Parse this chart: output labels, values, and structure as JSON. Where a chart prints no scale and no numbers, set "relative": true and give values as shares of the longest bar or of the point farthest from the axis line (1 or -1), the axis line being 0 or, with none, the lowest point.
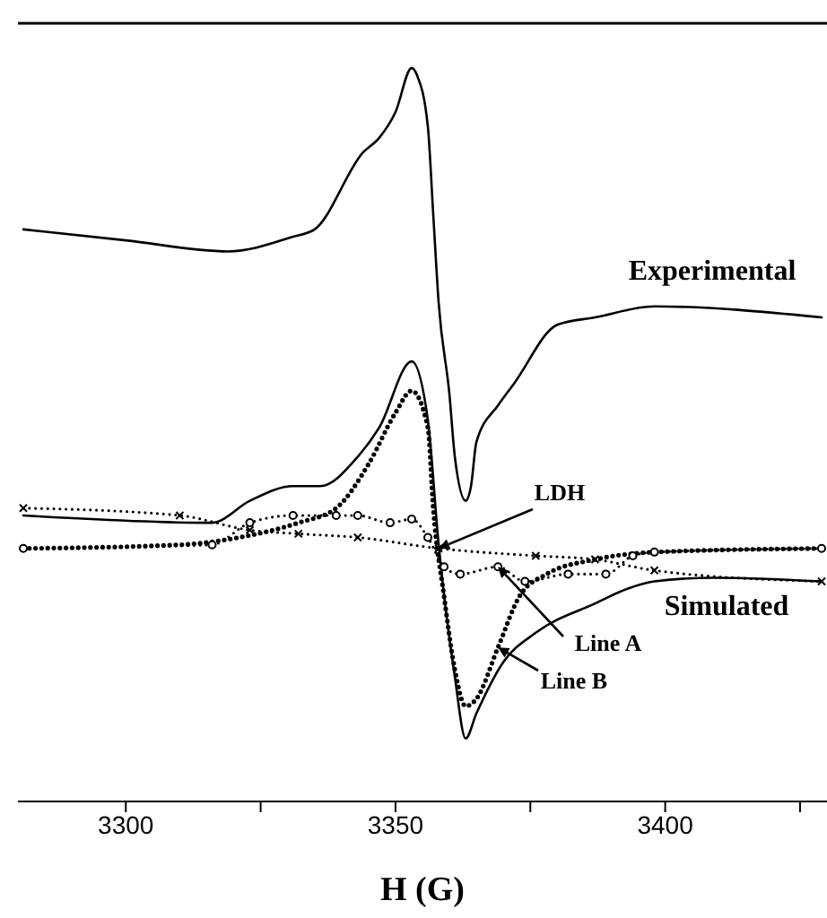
{
  "chart_data": {
    "type": "line",
    "relative": true,
    "xlabel": "H (G)",
    "xlim": [
      3280,
      3430
    ],
    "xticks": [
      3300,
      {
        "value": 3325,
        "label": null
      },
      3350,
      {
        "value": 3375,
        "label": null
      },
      3400,
      {
        "value": 3425,
        "label": null
      }
    ],
    "series": [
      {
        "name": "Experimental",
        "color": "#000000",
        "marker": "none",
        "line_style": "solid",
        "x": [
          3281,
          3300,
          3319,
          3331,
          3335,
          3344,
          3347,
          3350,
          3353,
          3354,
          3356,
          3357,
          3358,
          3360,
          3361,
          3363,
          3364,
          3365,
          3369,
          3372,
          3380,
          3387,
          3398,
          3429
        ],
        "values": [
          0.78,
          0.765,
          0.75,
          0.77,
          0.78,
          0.885,
          0.905,
          0.94,
          1.0,
          0.99,
          0.92,
          0.8,
          0.68,
          0.555,
          0.47,
          0.41,
          0.43,
          0.49,
          0.54,
          0.57,
          0.65,
          0.66,
          0.675,
          0.66
        ]
      },
      {
        "name": "Simulated",
        "color": "#000000",
        "marker": "none",
        "line_style": "solid",
        "x": [
          3281,
          3316,
          3323,
          3331,
          3336,
          3343,
          3347,
          3353,
          3356,
          3358,
          3361,
          3363,
          3365,
          3370,
          3376,
          3387,
          3393,
          3398,
          3409,
          3429
        ],
        "values": [
          0.39,
          0.38,
          0.41,
          0.43,
          0.43,
          0.47,
          0.51,
          0.6,
          0.52,
          0.35,
          0.17,
          0.086,
          0.12,
          0.19,
          0.23,
          0.27,
          0.29,
          0.3,
          0.305,
          0.3
        ]
      },
      {
        "name": "LDH",
        "color": "#000000",
        "marker": "cross",
        "line_style": "dotted",
        "x": [
          3281,
          3310,
          3323,
          3332,
          3343,
          3358,
          3376,
          3387,
          3398,
          3429
        ],
        "values": [
          0.4,
          0.39,
          0.37,
          0.365,
          0.36,
          0.345,
          0.335,
          0.33,
          0.315,
          0.3
        ]
      },
      {
        "name": "Line A",
        "color": "#000000",
        "marker": "circle",
        "line_style": "dotted",
        "x": [
          3281,
          3316,
          3323,
          3331,
          3339,
          3343,
          3349,
          3353,
          3356,
          3359,
          3362,
          3369,
          3374,
          3382,
          3389,
          3394,
          3398,
          3429
        ],
        "values": [
          0.345,
          0.35,
          0.38,
          0.39,
          0.39,
          0.39,
          0.38,
          0.385,
          0.36,
          0.32,
          0.31,
          0.32,
          0.3,
          0.31,
          0.31,
          0.335,
          0.34,
          0.345
        ]
      },
      {
        "name": "Line B",
        "color": "#000000",
        "marker": "none",
        "line_style": "dotted",
        "x": [
          3281,
          3310,
          3321,
          3332,
          3339,
          3345,
          3350,
          3353,
          3356,
          3357,
          3359,
          3361,
          3363,
          3365,
          3369,
          3373,
          3378,
          3387,
          3398,
          3429
        ],
        "values": [
          0.345,
          0.35,
          0.36,
          0.38,
          0.4,
          0.46,
          0.53,
          0.56,
          0.51,
          0.4,
          0.28,
          0.18,
          0.13,
          0.14,
          0.21,
          0.28,
          0.31,
          0.33,
          0.34,
          0.345
        ]
      }
    ]
  }
}
